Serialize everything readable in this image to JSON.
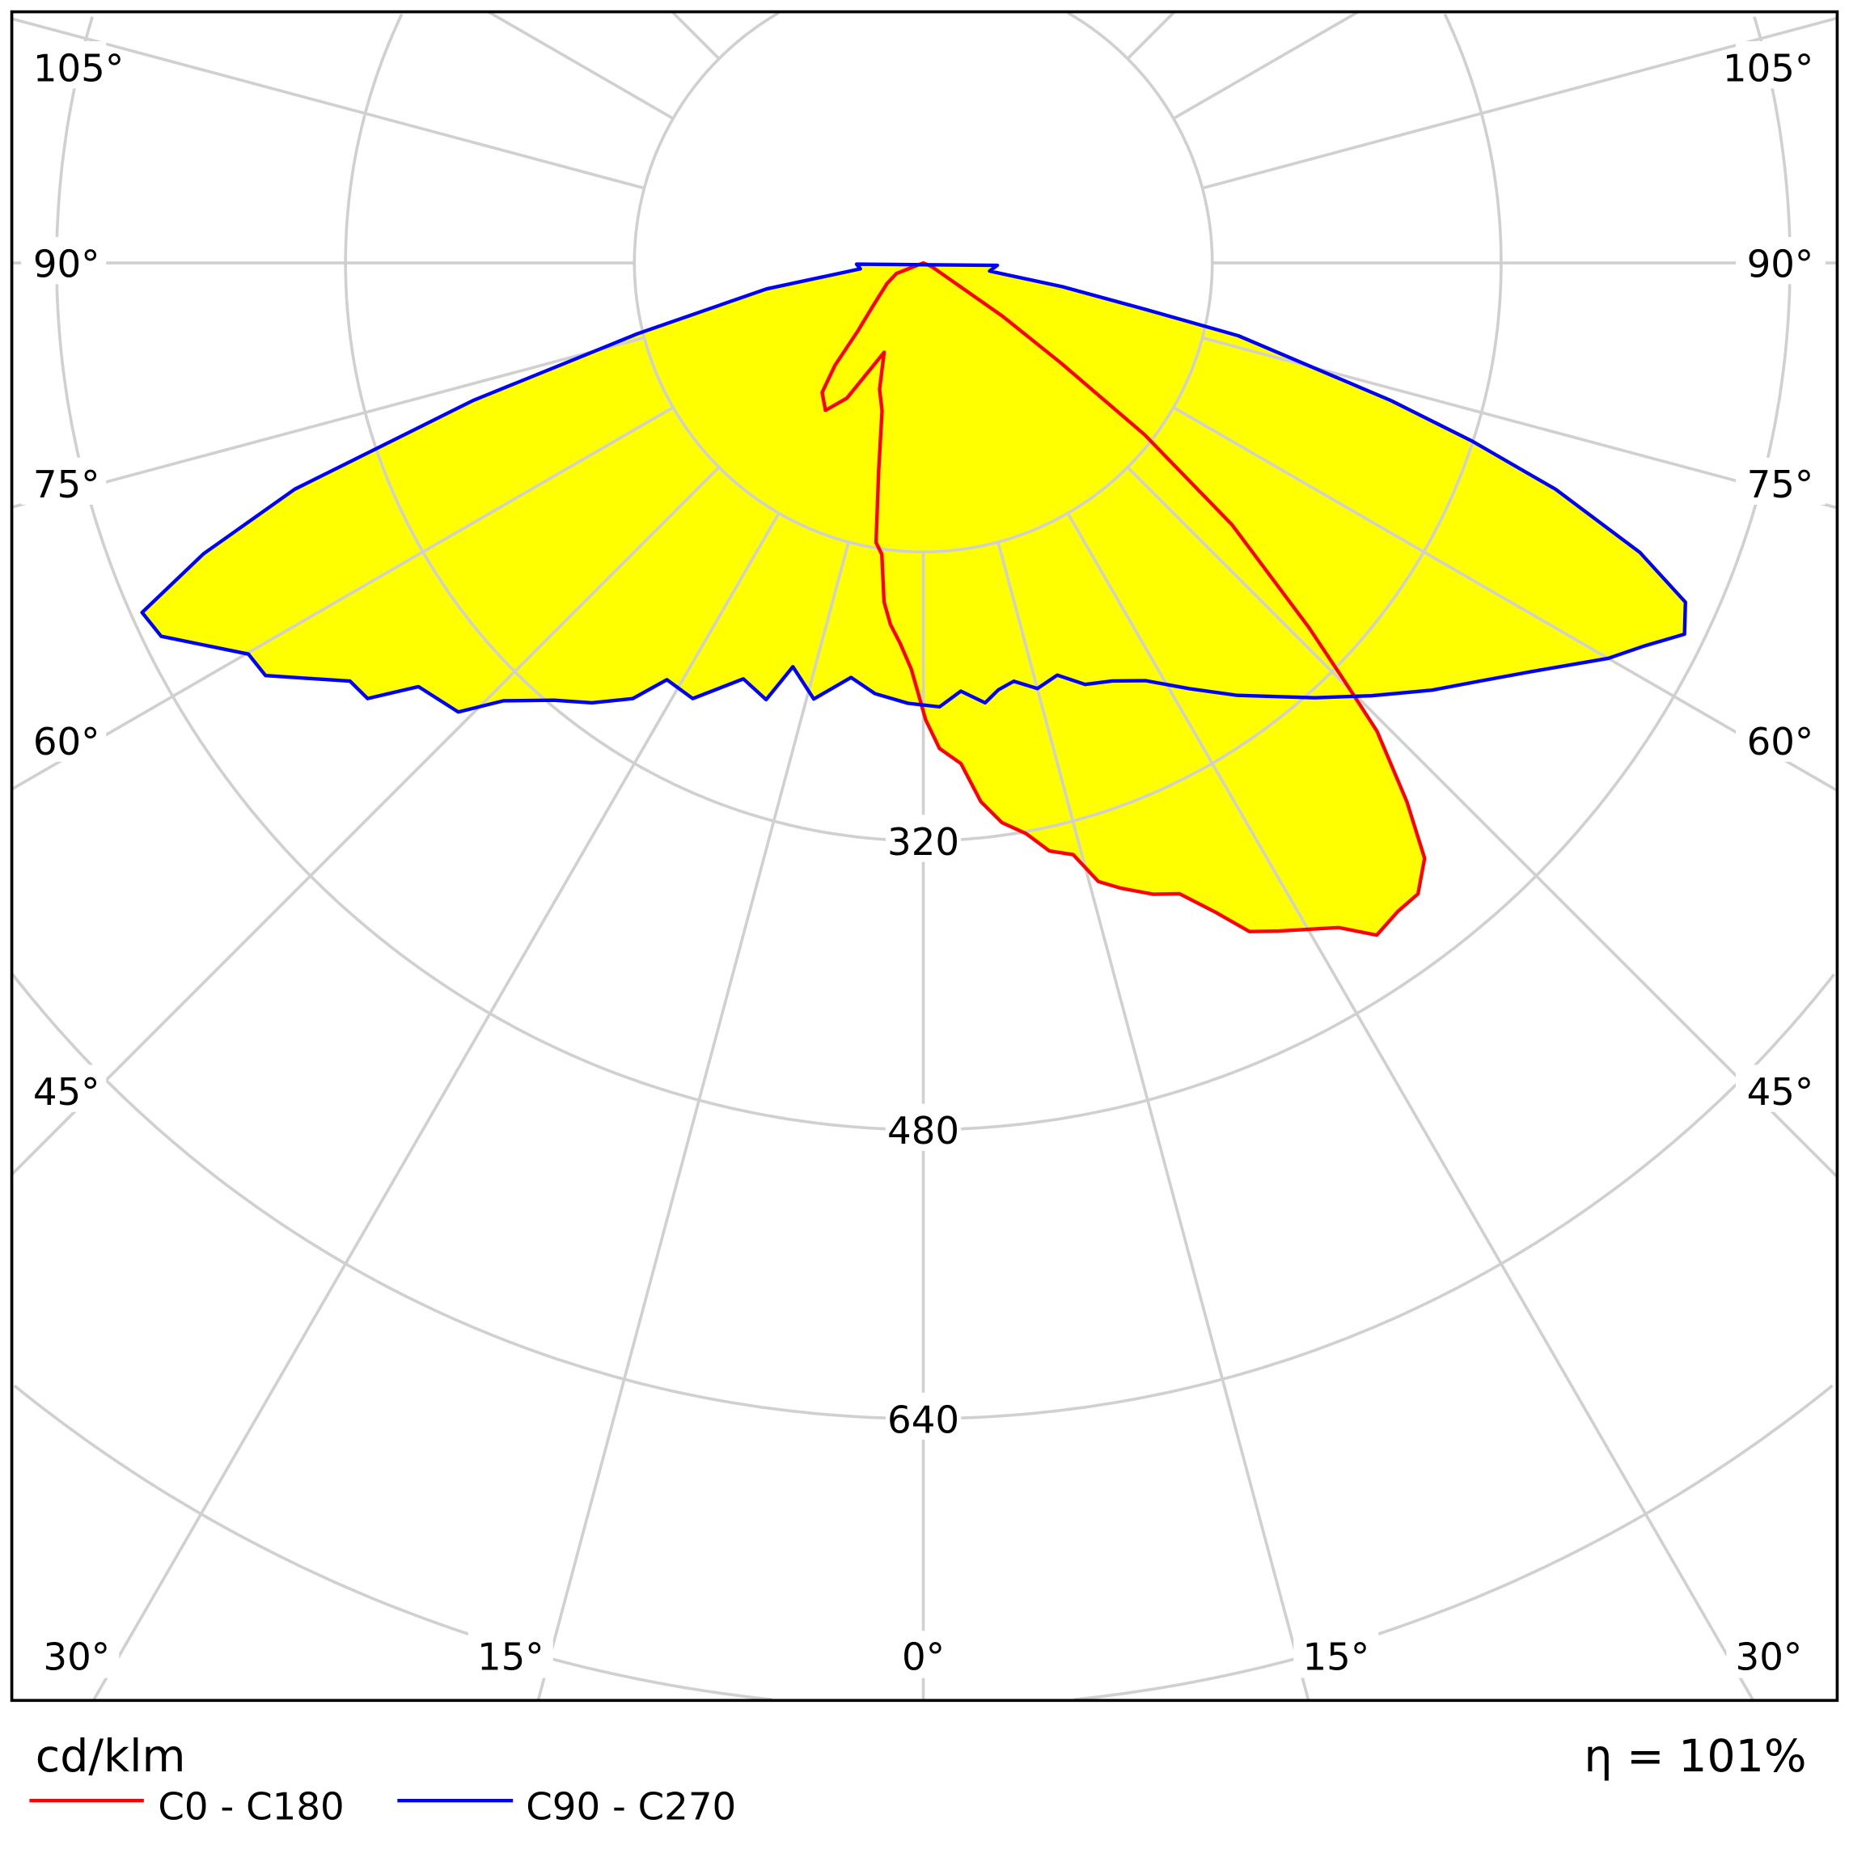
{
  "chart_data": {
    "type": "polar",
    "unit_label": "cd/klm",
    "efficiency_label": "η = 101%",
    "radial_ticks": [
      160,
      320,
      480,
      640,
      800
    ],
    "radial_tick_labels": [
      "320",
      "480",
      "640"
    ],
    "angle_labels_left": [
      "105°",
      "90°",
      "75°",
      "60°",
      "45°"
    ],
    "angle_labels_right": [
      "105°",
      "90°",
      "75°",
      "60°",
      "45°"
    ],
    "angle_labels_bottom": [
      "30°",
      "15°",
      "0°",
      "15°",
      "30°"
    ],
    "grid": true,
    "fill_color": "#ffff00",
    "series": [
      {
        "name": "C0 - C180",
        "color": "#ff0000",
        "points": [
          [
            90,
            0
          ],
          [
            -68.6,
            16
          ],
          [
            -60.5,
            23
          ],
          [
            -49.3,
            37
          ],
          [
            -44,
            52
          ],
          [
            -40.8,
            75
          ],
          [
            -38,
            91
          ],
          [
            -33.6,
            98
          ],
          [
            -29.5,
            86
          ],
          [
            -23.7,
            54
          ],
          [
            -19.1,
            74
          ],
          [
            -15.6,
            85
          ],
          [
            -12.1,
            118
          ],
          [
            -9.6,
            157
          ],
          [
            -8.1,
            163
          ],
          [
            -6.6,
            189
          ],
          [
            -5.2,
            201
          ],
          [
            -3.5,
            211
          ],
          [
            -1.7,
            225
          ],
          [
            0.3,
            253
          ],
          [
            1.9,
            269
          ],
          [
            4.3,
            278
          ],
          [
            6.1,
            300
          ],
          [
            8,
            313
          ],
          [
            10.2,
            321
          ],
          [
            12.1,
            333
          ],
          [
            14.2,
            338
          ],
          [
            15.8,
            356
          ],
          [
            17.5,
            363
          ],
          [
            20,
            372
          ],
          [
            22.1,
            377
          ],
          [
            24.2,
            394
          ],
          [
            26,
            412
          ],
          [
            28,
            419
          ],
          [
            32,
            434
          ],
          [
            34,
            449
          ],
          [
            36.2,
            445
          ],
          [
            38.1,
            444
          ],
          [
            40.1,
            431
          ],
          [
            41.9,
            401
          ],
          [
            44.1,
            361
          ],
          [
            45.2,
            329
          ],
          [
            46.6,
            294
          ],
          [
            49.7,
            224
          ],
          [
            52.2,
            155
          ],
          [
            54,
            94
          ],
          [
            56.1,
            53
          ],
          [
            66.8,
            5
          ],
          [
            90,
            0
          ]
        ]
      },
      {
        "name": "C90 - C270",
        "color": "#0000ff",
        "points": [
          [
            -89,
            37
          ],
          [
            -84.6,
            35
          ],
          [
            -80.6,
            88
          ],
          [
            -76.1,
            163
          ],
          [
            -73,
            261
          ],
          [
            -70.2,
            370
          ],
          [
            -68,
            430
          ],
          [
            -65.9,
            474
          ],
          [
            -63.9,
            470
          ],
          [
            -59.9,
            432
          ],
          [
            -57.9,
            430
          ],
          [
            -53.9,
            393
          ],
          [
            -51.9,
            391
          ],
          [
            -50,
            365
          ],
          [
            -46,
            358
          ],
          [
            -43.8,
            336
          ],
          [
            -40.2,
            317
          ],
          [
            -37,
            305
          ],
          [
            -33.7,
            290
          ],
          [
            -31.6,
            271
          ],
          [
            -27.9,
            273
          ],
          [
            -23.4,
            251
          ],
          [
            -19.8,
            257
          ],
          [
            -17.9,
            235
          ],
          [
            -14.1,
            249
          ],
          [
            -9.9,
            233
          ],
          [
            -6.4,
            240
          ],
          [
            -2,
            244
          ],
          [
            2.1,
            246
          ],
          [
            5,
            238
          ],
          [
            8,
            246
          ],
          [
            10,
            240
          ],
          [
            12.2,
            237
          ],
          [
            15,
            244
          ],
          [
            18,
            240
          ],
          [
            21,
            250
          ],
          [
            24.3,
            254
          ],
          [
            28,
            262
          ],
          [
            32,
            278
          ],
          [
            36,
            296
          ],
          [
            42,
            324
          ],
          [
            46,
            345
          ],
          [
            50,
            368
          ],
          [
            53,
            385
          ],
          [
            56,
            405
          ],
          [
            60,
            438
          ],
          [
            62,
            452
          ],
          [
            64,
            469
          ],
          [
            66,
            462
          ],
          [
            68,
            428
          ],
          [
            70.3,
            372
          ],
          [
            72,
            320
          ],
          [
            73.6,
            270
          ],
          [
            77,
            179
          ],
          [
            78.2,
            125
          ],
          [
            80.3,
            78
          ],
          [
            83,
            37
          ],
          [
            88.2,
            41
          ]
        ]
      }
    ]
  }
}
